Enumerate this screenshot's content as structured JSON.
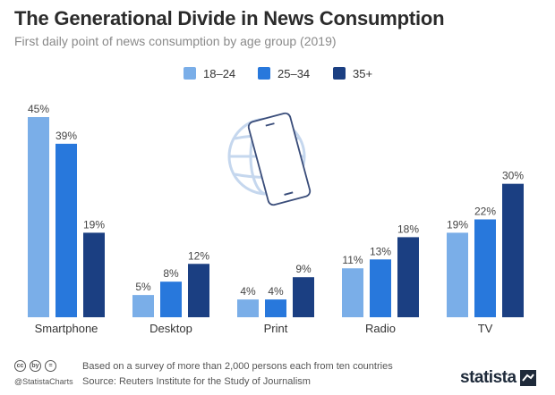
{
  "header": {
    "title": "The Generational Divide in News Consumption",
    "subtitle": "First daily point of news consumption by age group (2019)"
  },
  "colors": {
    "series1": "#7aaee8",
    "series2": "#2878dc",
    "series3": "#1b3f82",
    "label_text": "#444444",
    "icon": "#3a4d7a",
    "globe": "#c5d7ee"
  },
  "chart_data": {
    "type": "bar",
    "title": "The Generational Divide in News Consumption",
    "subtitle": "First daily point of news consumption by age group (2019)",
    "xlabel": "",
    "ylabel": "",
    "ylim": [
      0,
      45
    ],
    "unit": "%",
    "grid": false,
    "legend_position": "top-center",
    "categories": [
      "Smartphone",
      "Desktop",
      "Print",
      "Radio",
      "TV"
    ],
    "series": [
      {
        "name": "18–24",
        "values": [
          45,
          5,
          4,
          11,
          19
        ]
      },
      {
        "name": "25–34",
        "values": [
          39,
          8,
          4,
          13,
          22
        ]
      },
      {
        "name": "35+",
        "values": [
          19,
          12,
          9,
          18,
          30
        ]
      }
    ]
  },
  "footer": {
    "cc_icons": [
      "cc",
      "by",
      "="
    ],
    "handle": "@StatistaCharts",
    "note": "Based on a survey of more than 2,000 persons each from ten countries",
    "source": "Source: Reuters Institute for the Study of Journalism",
    "brand": "statista"
  }
}
